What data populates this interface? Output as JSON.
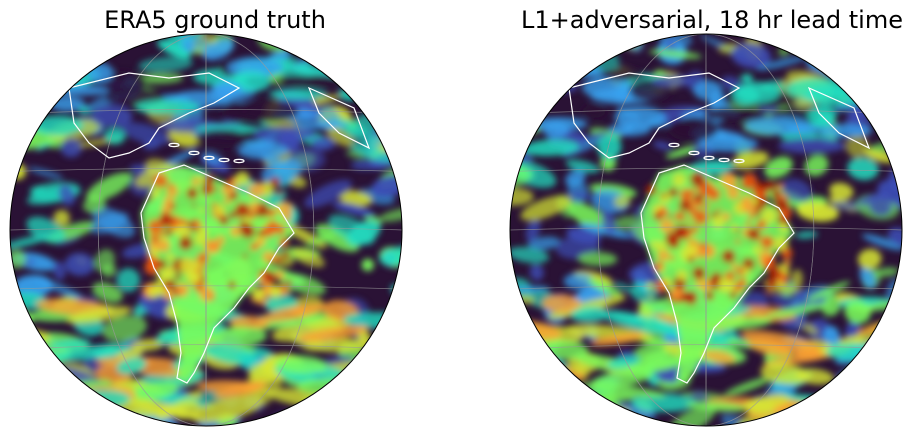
{
  "panels": [
    {
      "title": "ERA5 ground truth"
    },
    {
      "title": "L1+adversarial, 18 hr lead time"
    }
  ],
  "colors": {
    "background": "#2a1235",
    "land_outline": "#ffffff",
    "graticule": "#9a9a9a",
    "globe_edge": "#000000",
    "colormap": [
      "#2a1235",
      "#3d4fb8",
      "#38a2f0",
      "#22e0c2",
      "#7afc5c",
      "#d6e534",
      "#fca232",
      "#ee5a12",
      "#b01e06"
    ]
  }
}
